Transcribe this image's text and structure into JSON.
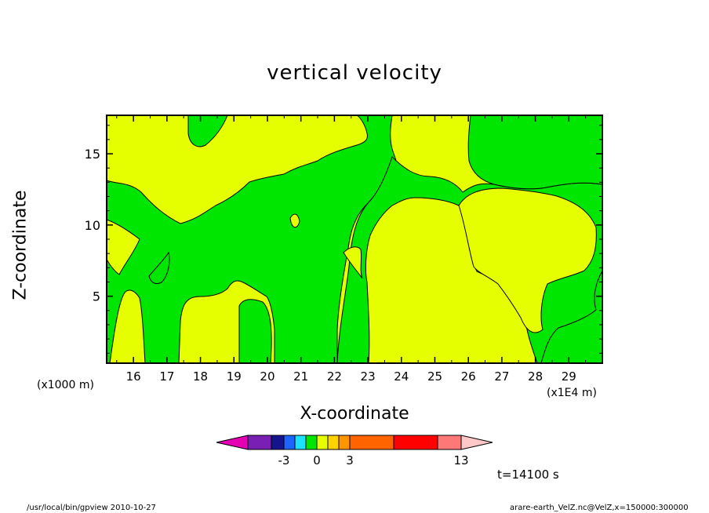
{
  "chart_data": {
    "type": "heatmap",
    "title": "vertical velocity",
    "xlabel": "X-coordinate",
    "ylabel": "Z-coordinate",
    "x_unit_left": "(x1000 m)",
    "x_unit_right": "(x1E4 m)",
    "x_ticks": [
      "16",
      "17",
      "18",
      "19",
      "20",
      "21",
      "22",
      "23",
      "24",
      "25",
      "26",
      "27",
      "28",
      "29"
    ],
    "y_ticks": [
      "5",
      "10",
      "15"
    ],
    "xlim": [
      15.2,
      30
    ],
    "ylim": [
      0.3,
      17.7
    ],
    "colorbar": {
      "colors": [
        "#e600b4",
        "#7a1fb4",
        "#14148c",
        "#1e64ff",
        "#1ee1ff",
        "#00e600",
        "#e6ff00",
        "#ffd200",
        "#ff9600",
        "#ff6400",
        "#ff0000",
        "#ff7878",
        "#ffc8c8"
      ],
      "tick_labels": [
        "-3",
        "0",
        "3",
        "13"
      ]
    },
    "time_label": "t=14100 s",
    "footer_left": "/usr/local/bin/gpview   2010-10-27",
    "footer_right": "arare-earth_VelZ.nc@VelZ,x=150000:300000"
  }
}
